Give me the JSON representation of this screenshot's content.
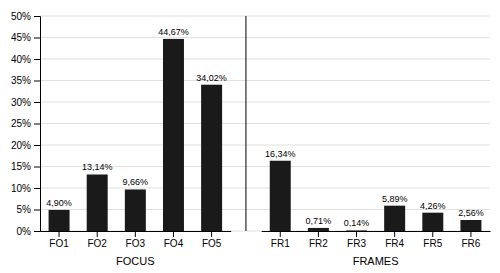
{
  "chart_data": {
    "type": "bar",
    "categories": [
      "FO1",
      "FO2",
      "FO3",
      "FO4",
      "FO5",
      "FR1",
      "FR2",
      "FR3",
      "FR4",
      "FR5",
      "FR6"
    ],
    "values": [
      4.9,
      13.14,
      9.66,
      44.67,
      34.02,
      16.34,
      0.71,
      0.14,
      5.89,
      4.26,
      2.56
    ],
    "value_labels": [
      "4,90%",
      "13,14%",
      "9,66%",
      "44,67%",
      "34,02%",
      "16,34%",
      "0,71%",
      "0,14%",
      "5,89%",
      "4,26%",
      "2,56%"
    ],
    "data_labels": true,
    "groups": [
      {
        "label": "FOCUS",
        "categories": [
          "FO1",
          "FO2",
          "FO3",
          "FO4",
          "FO5"
        ]
      },
      {
        "label": "FRAMES",
        "categories": [
          "FR1",
          "FR2",
          "FR3",
          "FR4",
          "FR5",
          "FR6"
        ]
      }
    ],
    "color": "#1a1a1a",
    "ylim": [
      0,
      50
    ],
    "yticks": [
      {
        "value": 0,
        "label": "0%"
      },
      {
        "value": 5,
        "label": "5%"
      },
      {
        "value": 10,
        "label": "10%"
      },
      {
        "value": 15,
        "label": "15%"
      },
      {
        "value": 20,
        "label": "20%"
      },
      {
        "value": 25,
        "label": "25%"
      },
      {
        "value": 30,
        "label": "30%"
      },
      {
        "value": 35,
        "label": "35%"
      },
      {
        "value": 40,
        "label": "40%"
      },
      {
        "value": 45,
        "label": "45%"
      },
      {
        "value": 50,
        "label": "50%"
      }
    ],
    "grid": true
  }
}
